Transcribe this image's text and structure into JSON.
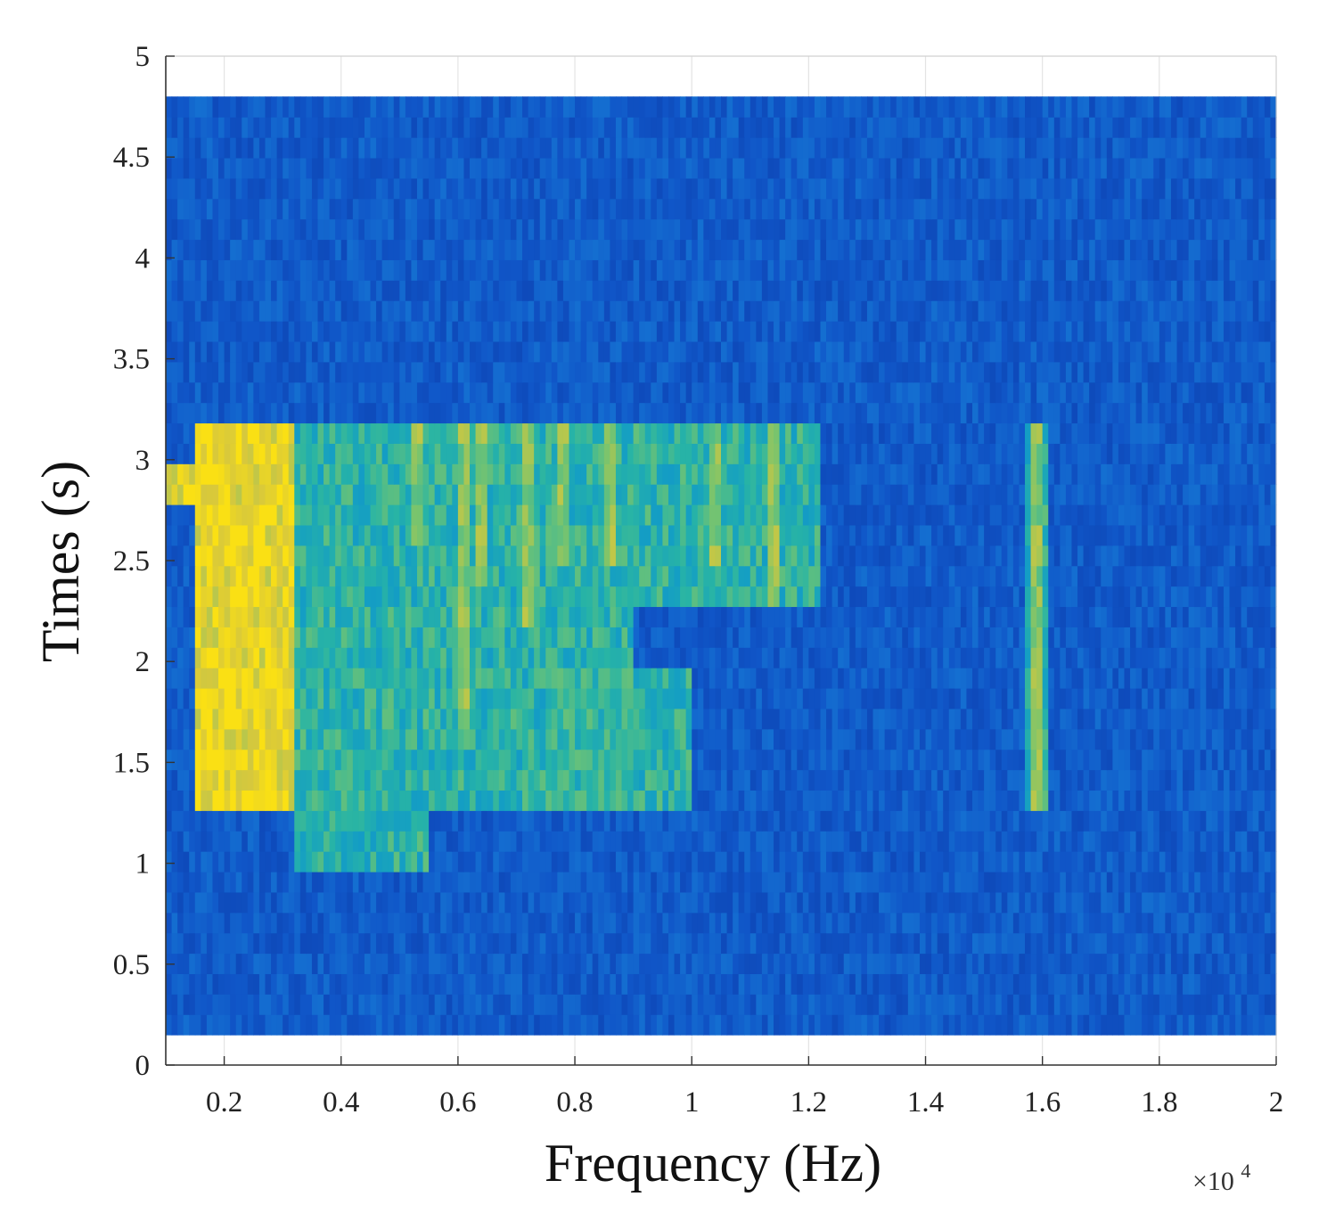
{
  "chart_data": {
    "type": "heatmap",
    "title": "",
    "xlabel": "Frequency (Hz)",
    "ylabel": "Times (s)",
    "x_multiplier_label": "×10",
    "x_multiplier_exponent": "4",
    "xlim": [
      0.1,
      2.0
    ],
    "ylim": [
      0,
      5
    ],
    "x_ticks": [
      0.2,
      0.4,
      0.6,
      0.8,
      1.0,
      1.2,
      1.4,
      1.6,
      1.8,
      2.0
    ],
    "x_tick_labels": [
      "0.2",
      "0.4",
      "0.6",
      "0.8",
      "1",
      "1.2",
      "1.4",
      "1.6",
      "1.8",
      "2"
    ],
    "y_ticks": [
      0,
      0.5,
      1,
      1.5,
      2,
      2.5,
      3,
      3.5,
      4,
      4.5,
      5
    ],
    "y_tick_labels": [
      "0",
      "0.5",
      "1",
      "1.5",
      "2",
      "2.5",
      "3",
      "3.5",
      "4",
      "4.5",
      "5"
    ],
    "grid": true,
    "colormap": "parula",
    "colors": {
      "low": "#0d4fb8",
      "mid": "#1fa3b8",
      "high": "#fadc14"
    },
    "data_time_range": [
      0.15,
      4.8
    ],
    "high_energy_regions": [
      {
        "freq_range": [
          0.15,
          0.32
        ],
        "time_range": [
          1.25,
          3.2
        ],
        "level": "high"
      },
      {
        "freq_range": [
          0.1,
          0.16
        ],
        "time_range": [
          2.75,
          3.0
        ],
        "level": "high"
      },
      {
        "freq_range": [
          0.32,
          0.55
        ],
        "time_range": [
          1.0,
          3.2
        ],
        "level": "medium"
      },
      {
        "freq_range": [
          0.55,
          0.9
        ],
        "time_range": [
          1.25,
          3.2
        ],
        "level": "medium"
      },
      {
        "freq_range": [
          0.9,
          1.22
        ],
        "time_range": [
          2.3,
          3.2
        ],
        "level": "medium"
      },
      {
        "freq_range": [
          0.75,
          1.0
        ],
        "time_range": [
          1.25,
          2.0
        ],
        "level": "medium"
      },
      {
        "freq_range": [
          1.57,
          1.61
        ],
        "time_range": [
          1.3,
          3.2
        ],
        "level": "medium"
      }
    ],
    "streaks": [
      {
        "freq": 0.53,
        "time_range": [
          2.6,
          3.2
        ]
      },
      {
        "freq": 0.61,
        "time_range": [
          1.7,
          3.2
        ]
      },
      {
        "freq": 0.64,
        "time_range": [
          2.4,
          3.2
        ]
      },
      {
        "freq": 0.72,
        "time_range": [
          2.2,
          3.2
        ]
      },
      {
        "freq": 0.78,
        "time_range": [
          2.5,
          3.2
        ]
      },
      {
        "freq": 0.86,
        "time_range": [
          2.5,
          3.2
        ]
      },
      {
        "freq": 1.04,
        "time_range": [
          2.5,
          3.2
        ]
      },
      {
        "freq": 1.14,
        "time_range": [
          2.3,
          3.2
        ]
      },
      {
        "freq": 1.59,
        "time_range": [
          1.3,
          3.2
        ]
      }
    ]
  }
}
